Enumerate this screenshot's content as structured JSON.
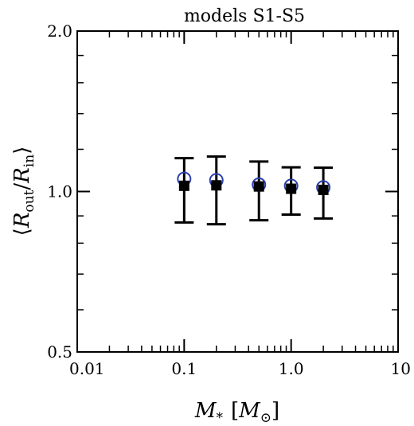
{
  "chart_data": {
    "type": "scatter",
    "title": "models S1-S5",
    "xscale": "log",
    "yscale": "log",
    "xlim": [
      0.01,
      10
    ],
    "ylim": [
      0.5,
      2.0
    ],
    "x_tick_labels": [
      "0.01",
      "0.1",
      "1.0",
      "10"
    ],
    "x_tick_values": [
      0.01,
      0.1,
      1.0,
      10
    ],
    "y_tick_labels": [
      "0.5",
      "1.0",
      "2.0"
    ],
    "y_tick_values": [
      0.5,
      1.0,
      2.0
    ],
    "y_minor_ticks": [
      0.6,
      0.7,
      0.8,
      0.9,
      1.2,
      1.4,
      1.6,
      1.8
    ],
    "xlabel": {
      "main": "M",
      "sub": "*",
      "unit_open": "[",
      "unit_main": "M",
      "unit_sub": "⊙",
      "unit_close": "]"
    },
    "ylabel": {
      "open": "⟨",
      "num": "R",
      "num_sub": "out",
      "slash": "/",
      "den": "R",
      "den_sub": "in",
      "close": "⟩"
    },
    "grid": false,
    "series": [
      {
        "marker": "filled-square",
        "color": "#000000",
        "points": [
          {
            "x": 0.1,
            "y": 1.025,
            "err_low": 0.875,
            "err_high": 1.155
          },
          {
            "x": 0.2,
            "y": 1.027,
            "err_low": 0.868,
            "err_high": 1.163
          },
          {
            "x": 0.5,
            "y": 1.022,
            "err_low": 0.883,
            "err_high": 1.138
          },
          {
            "x": 1.0,
            "y": 1.012,
            "err_low": 0.905,
            "err_high": 1.11
          },
          {
            "x": 2.0,
            "y": 1.007,
            "err_low": 0.89,
            "err_high": 1.108
          }
        ]
      },
      {
        "marker": "open-circle",
        "color": "#2b3fae",
        "points": [
          {
            "x": 0.1,
            "y": 1.056
          },
          {
            "x": 0.2,
            "y": 1.05
          },
          {
            "x": 0.5,
            "y": 1.03
          },
          {
            "x": 1.0,
            "y": 1.025
          },
          {
            "x": 2.0,
            "y": 1.018
          }
        ]
      }
    ]
  }
}
